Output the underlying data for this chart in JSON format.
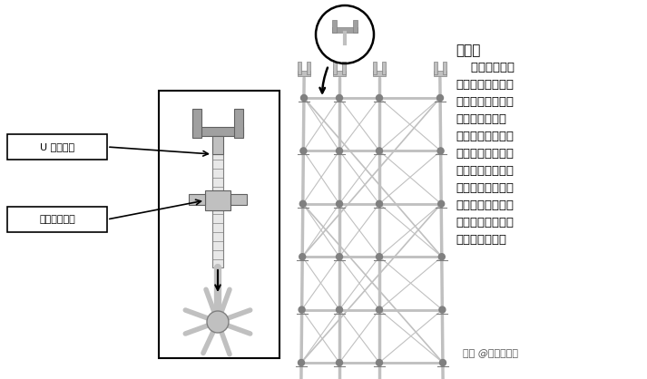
{
  "bg_color": "#ffffff",
  "label1": "U 型调整座",
  "label2": "高度调整扳手",
  "explanation_title": "说明：",
  "explanation_body": "    本文所述组装\n流程为盘扣系统脚\n手架各项构件的组\n搭方式及注意事\n项，每种杆件均有\n不同长度规格提供\n设计者设计规划，\n实际搭接需使用的\n规格及搭架高度需\n依照「脚手架配置\n图」按图施工。",
  "watermark": "头条 @建筑集结号",
  "sc_light": "#c0c0c0",
  "sc_mid": "#a0a0a0",
  "sc_dark": "#808080",
  "sc_darker": "#606060"
}
